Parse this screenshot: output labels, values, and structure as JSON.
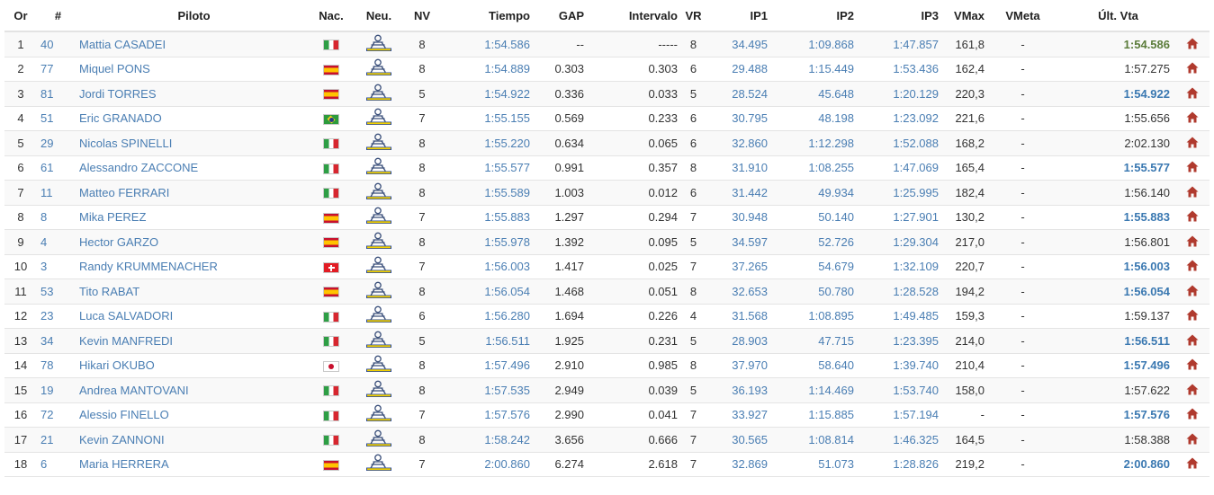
{
  "headers": {
    "pos": "Or",
    "num": "#",
    "rider": "Piloto",
    "nation": "Nac.",
    "tyre": "Neu.",
    "laps": "NV",
    "time": "Tiempo",
    "gap": "GAP",
    "interval": "Intervalo",
    "best_lap": "VR",
    "ip1": "IP1",
    "ip2": "IP2",
    "ip3": "IP3",
    "vmax": "VMax",
    "vfinish": "VMeta",
    "last_lap": "Últ. Vta"
  },
  "tyre_icon": "michelin-tyre-icon",
  "action_icon": "house-icon",
  "colors": {
    "link": "#4a7eb3",
    "overall_best": "#5b7c3a",
    "personal_best": "#3a78b1",
    "action_icon": "#b03a2e"
  },
  "rows": [
    {
      "pos": "1",
      "num": "40",
      "rider": "Mattia CASADEI",
      "flag": "it",
      "laps": "8",
      "time": "1:54.586",
      "gap": "--",
      "interval": "-----",
      "best_lap": "8",
      "ip1": "34.495",
      "ip2": "1:09.868",
      "ip3": "1:47.857",
      "vmax": "161,8",
      "vfinish": "-",
      "last": "1:54.586",
      "last_style": "best"
    },
    {
      "pos": "2",
      "num": "77",
      "rider": "Miquel PONS",
      "flag": "es",
      "laps": "8",
      "time": "1:54.889",
      "gap": "0.303",
      "interval": "0.303",
      "best_lap": "6",
      "ip1": "29.488",
      "ip2": "1:15.449",
      "ip3": "1:53.436",
      "vmax": "162,4",
      "vfinish": "-",
      "last": "1:57.275",
      "last_style": ""
    },
    {
      "pos": "3",
      "num": "81",
      "rider": "Jordi TORRES",
      "flag": "es",
      "laps": "5",
      "time": "1:54.922",
      "gap": "0.336",
      "interval": "0.033",
      "best_lap": "5",
      "ip1": "28.524",
      "ip2": "45.648",
      "ip3": "1:20.129",
      "vmax": "220,3",
      "vfinish": "-",
      "last": "1:54.922",
      "last_style": "pb"
    },
    {
      "pos": "4",
      "num": "51",
      "rider": "Eric GRANADO",
      "flag": "br",
      "laps": "7",
      "time": "1:55.155",
      "gap": "0.569",
      "interval": "0.233",
      "best_lap": "6",
      "ip1": "30.795",
      "ip2": "48.198",
      "ip3": "1:23.092",
      "vmax": "221,6",
      "vfinish": "-",
      "last": "1:55.656",
      "last_style": ""
    },
    {
      "pos": "5",
      "num": "29",
      "rider": "Nicolas SPINELLI",
      "flag": "it",
      "laps": "8",
      "time": "1:55.220",
      "gap": "0.634",
      "interval": "0.065",
      "best_lap": "6",
      "ip1": "32.860",
      "ip2": "1:12.298",
      "ip3": "1:52.088",
      "vmax": "168,2",
      "vfinish": "-",
      "last": "2:02.130",
      "last_style": ""
    },
    {
      "pos": "6",
      "num": "61",
      "rider": "Alessandro ZACCONE",
      "flag": "it",
      "laps": "8",
      "time": "1:55.577",
      "gap": "0.991",
      "interval": "0.357",
      "best_lap": "8",
      "ip1": "31.910",
      "ip2": "1:08.255",
      "ip3": "1:47.069",
      "vmax": "165,4",
      "vfinish": "-",
      "last": "1:55.577",
      "last_style": "pb"
    },
    {
      "pos": "7",
      "num": "11",
      "rider": "Matteo FERRARI",
      "flag": "it",
      "laps": "8",
      "time": "1:55.589",
      "gap": "1.003",
      "interval": "0.012",
      "best_lap": "6",
      "ip1": "31.442",
      "ip2": "49.934",
      "ip3": "1:25.995",
      "vmax": "182,4",
      "vfinish": "-",
      "last": "1:56.140",
      "last_style": ""
    },
    {
      "pos": "8",
      "num": "8",
      "rider": "Mika PEREZ",
      "flag": "es",
      "laps": "7",
      "time": "1:55.883",
      "gap": "1.297",
      "interval": "0.294",
      "best_lap": "7",
      "ip1": "30.948",
      "ip2": "50.140",
      "ip3": "1:27.901",
      "vmax": "130,2",
      "vfinish": "-",
      "last": "1:55.883",
      "last_style": "pb"
    },
    {
      "pos": "9",
      "num": "4",
      "rider": "Hector GARZO",
      "flag": "es",
      "laps": "8",
      "time": "1:55.978",
      "gap": "1.392",
      "interval": "0.095",
      "best_lap": "5",
      "ip1": "34.597",
      "ip2": "52.726",
      "ip3": "1:29.304",
      "vmax": "217,0",
      "vfinish": "-",
      "last": "1:56.801",
      "last_style": ""
    },
    {
      "pos": "10",
      "num": "3",
      "rider": "Randy KRUMMENACHER",
      "flag": "ch",
      "laps": "7",
      "time": "1:56.003",
      "gap": "1.417",
      "interval": "0.025",
      "best_lap": "7",
      "ip1": "37.265",
      "ip2": "54.679",
      "ip3": "1:32.109",
      "vmax": "220,7",
      "vfinish": "-",
      "last": "1:56.003",
      "last_style": "pb"
    },
    {
      "pos": "11",
      "num": "53",
      "rider": "Tito RABAT",
      "flag": "es",
      "laps": "8",
      "time": "1:56.054",
      "gap": "1.468",
      "interval": "0.051",
      "best_lap": "8",
      "ip1": "32.653",
      "ip2": "50.780",
      "ip3": "1:28.528",
      "vmax": "194,2",
      "vfinish": "-",
      "last": "1:56.054",
      "last_style": "pb"
    },
    {
      "pos": "12",
      "num": "23",
      "rider": "Luca SALVADORI",
      "flag": "it",
      "laps": "6",
      "time": "1:56.280",
      "gap": "1.694",
      "interval": "0.226",
      "best_lap": "4",
      "ip1": "31.568",
      "ip2": "1:08.895",
      "ip3": "1:49.485",
      "vmax": "159,3",
      "vfinish": "-",
      "last": "1:59.137",
      "last_style": ""
    },
    {
      "pos": "13",
      "num": "34",
      "rider": "Kevin MANFREDI",
      "flag": "it",
      "laps": "5",
      "time": "1:56.511",
      "gap": "1.925",
      "interval": "0.231",
      "best_lap": "5",
      "ip1": "28.903",
      "ip2": "47.715",
      "ip3": "1:23.395",
      "vmax": "214,0",
      "vfinish": "-",
      "last": "1:56.511",
      "last_style": "pb"
    },
    {
      "pos": "14",
      "num": "78",
      "rider": "Hikari OKUBO",
      "flag": "jp",
      "laps": "8",
      "time": "1:57.496",
      "gap": "2.910",
      "interval": "0.985",
      "best_lap": "8",
      "ip1": "37.970",
      "ip2": "58.640",
      "ip3": "1:39.740",
      "vmax": "210,4",
      "vfinish": "-",
      "last": "1:57.496",
      "last_style": "pb"
    },
    {
      "pos": "15",
      "num": "19",
      "rider": "Andrea MANTOVANI",
      "flag": "it",
      "laps": "8",
      "time": "1:57.535",
      "gap": "2.949",
      "interval": "0.039",
      "best_lap": "5",
      "ip1": "36.193",
      "ip2": "1:14.469",
      "ip3": "1:53.740",
      "vmax": "158,0",
      "vfinish": "-",
      "last": "1:57.622",
      "last_style": ""
    },
    {
      "pos": "16",
      "num": "72",
      "rider": "Alessio FINELLO",
      "flag": "it",
      "laps": "7",
      "time": "1:57.576",
      "gap": "2.990",
      "interval": "0.041",
      "best_lap": "7",
      "ip1": "33.927",
      "ip2": "1:15.885",
      "ip3": "1:57.194",
      "vmax": "-",
      "vfinish": "-",
      "last": "1:57.576",
      "last_style": "pb"
    },
    {
      "pos": "17",
      "num": "21",
      "rider": "Kevin ZANNONI",
      "flag": "it",
      "laps": "8",
      "time": "1:58.242",
      "gap": "3.656",
      "interval": "0.666",
      "best_lap": "7",
      "ip1": "30.565",
      "ip2": "1:08.814",
      "ip3": "1:46.325",
      "vmax": "164,5",
      "vfinish": "-",
      "last": "1:58.388",
      "last_style": ""
    },
    {
      "pos": "18",
      "num": "6",
      "rider": "Maria HERRERA",
      "flag": "es",
      "laps": "7",
      "time": "2:00.860",
      "gap": "6.274",
      "interval": "2.618",
      "best_lap": "7",
      "ip1": "32.869",
      "ip2": "51.073",
      "ip3": "1:28.826",
      "vmax": "219,2",
      "vfinish": "-",
      "last": "2:00.860",
      "last_style": "pb"
    }
  ]
}
